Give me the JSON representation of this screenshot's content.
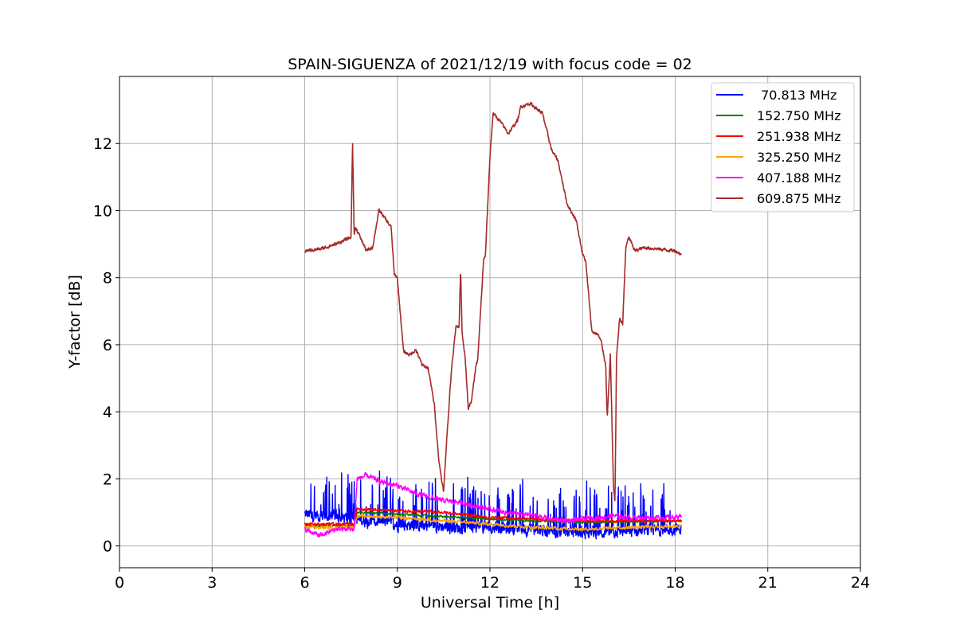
{
  "chart_data": {
    "type": "line",
    "title": "SPAIN-SIGUENZA of 2021/12/19 with focus code = 02",
    "xlabel": "Universal Time [h]",
    "ylabel": "Y-factor [dB]",
    "xlim": [
      0,
      24
    ],
    "ylim": [
      -0.65,
      14.0
    ],
    "xticks": [
      0,
      3,
      6,
      9,
      12,
      15,
      18,
      21,
      24
    ],
    "yticks": [
      0,
      2,
      4,
      6,
      8,
      10,
      12
    ],
    "grid": true,
    "legend_position": "top-right",
    "series": [
      {
        "name": " 70.813 MHz",
        "color": "#0000ff",
        "noise": 0.28,
        "spikes": 0.14,
        "spike_amp": 1.4,
        "x": [
          6.0,
          7.0,
          8.0,
          9.0,
          10.0,
          11.0,
          12.0,
          13.0,
          14.0,
          15.0,
          16.0,
          17.0,
          18.0,
          18.2
        ],
        "y": [
          0.95,
          0.85,
          0.75,
          0.65,
          0.6,
          0.55,
          0.55,
          0.5,
          0.45,
          0.4,
          0.4,
          0.45,
          0.5,
          0.5
        ]
      },
      {
        "name": "152.750 MHz",
        "color": "#008000",
        "noise": 0.05,
        "spikes": 0.0,
        "spike_amp": 0.0,
        "x": [
          6.0,
          7.6,
          7.7,
          9.0,
          12.0,
          15.0,
          18.2
        ],
        "y": [
          0.6,
          0.6,
          1.0,
          0.95,
          0.8,
          0.7,
          0.75
        ]
      },
      {
        "name": "251.938 MHz",
        "color": "#ff0000",
        "noise": 0.07,
        "spikes": 0.0,
        "spike_amp": 0.0,
        "x": [
          6.0,
          7.6,
          7.7,
          9.0,
          10.5,
          12.0,
          13.5,
          15.0,
          16.5,
          18.2
        ],
        "y": [
          0.65,
          0.65,
          1.1,
          1.05,
          1.0,
          0.85,
          0.8,
          0.75,
          0.75,
          0.75
        ]
      },
      {
        "name": "325.250 MHz",
        "color": "#ffa500",
        "noise": 0.08,
        "spikes": 0.0,
        "spike_amp": 0.0,
        "x": [
          6.0,
          7.6,
          7.7,
          9.0,
          10.5,
          12.0,
          13.5,
          15.0,
          16.5,
          18.2
        ],
        "y": [
          0.55,
          0.55,
          0.9,
          0.85,
          0.75,
          0.65,
          0.55,
          0.5,
          0.55,
          0.6
        ]
      },
      {
        "name": "407.188 MHz",
        "color": "#ff00ff",
        "noise": 0.12,
        "spikes": 0.0,
        "spike_amp": 0.0,
        "x": [
          6.0,
          6.5,
          7.0,
          7.6,
          7.7,
          8.0,
          8.5,
          9.0,
          9.5,
          10.0,
          10.5,
          11.0,
          11.5,
          12.0,
          12.5,
          13.0,
          13.5,
          14.0,
          14.5,
          15.0,
          15.5,
          16.0,
          16.5,
          17.0,
          18.2
        ],
        "y": [
          0.5,
          0.3,
          0.5,
          0.5,
          2.0,
          2.1,
          1.9,
          1.8,
          1.6,
          1.45,
          1.35,
          1.3,
          1.2,
          1.1,
          1.0,
          0.95,
          0.9,
          0.8,
          0.75,
          0.8,
          0.85,
          0.9,
          0.85,
          0.85,
          0.85
        ]
      },
      {
        "name": "609.875 MHz",
        "color": "#a52a2a",
        "noise": 0.08,
        "spikes": 0.0,
        "spike_amp": 0.0,
        "x": [
          6.0,
          6.5,
          7.0,
          7.5,
          7.55,
          7.6,
          7.65,
          7.8,
          8.0,
          8.2,
          8.4,
          8.5,
          8.8,
          8.9,
          9.0,
          9.2,
          9.4,
          9.6,
          9.8,
          10.0,
          10.2,
          10.35,
          10.5,
          10.6,
          10.75,
          10.9,
          11.0,
          11.05,
          11.1,
          11.2,
          11.3,
          11.4,
          11.55,
          11.6,
          11.8,
          11.85,
          12.0,
          12.1,
          12.3,
          12.6,
          12.9,
          13.0,
          13.3,
          13.7,
          14.0,
          14.2,
          14.5,
          14.8,
          15.0,
          15.1,
          15.3,
          15.5,
          15.6,
          15.75,
          15.8,
          15.9,
          16.0,
          16.05,
          16.1,
          16.2,
          16.3,
          16.4,
          16.5,
          16.7,
          17.0,
          17.5,
          18.0,
          18.2
        ],
        "y": [
          8.8,
          8.85,
          9.0,
          9.2,
          12.1,
          9.3,
          9.5,
          9.2,
          8.8,
          8.9,
          10.0,
          9.9,
          9.5,
          8.1,
          8.0,
          5.8,
          5.7,
          5.85,
          5.4,
          5.3,
          4.2,
          2.5,
          1.6,
          3.2,
          5.2,
          6.6,
          6.5,
          8.3,
          6.3,
          5.6,
          4.1,
          4.3,
          5.4,
          5.5,
          8.6,
          8.6,
          11.6,
          12.9,
          12.7,
          12.3,
          12.7,
          13.1,
          13.2,
          12.9,
          11.8,
          11.5,
          10.2,
          9.7,
          8.7,
          8.5,
          6.4,
          6.3,
          6.1,
          5.4,
          3.8,
          5.7,
          1.8,
          1.3,
          5.6,
          6.8,
          6.6,
          8.9,
          9.2,
          8.8,
          8.9,
          8.85,
          8.8,
          8.7
        ]
      }
    ]
  }
}
